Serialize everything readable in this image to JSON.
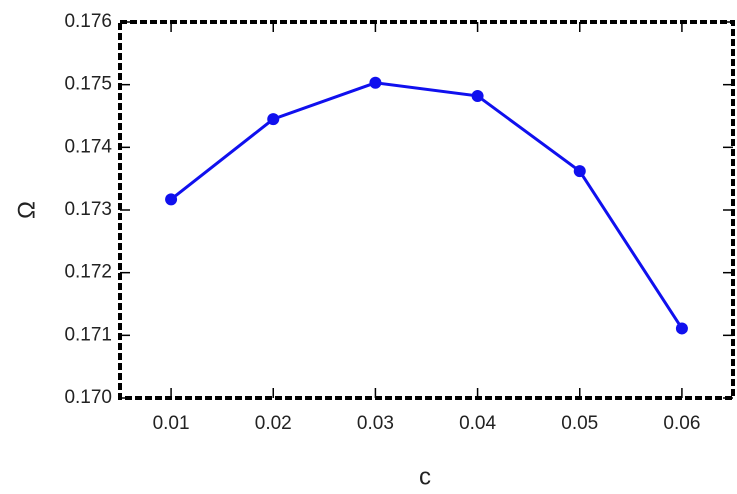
{
  "chart_data": {
    "type": "line",
    "x_label": "c",
    "y_label": "Ω",
    "x": [
      0.01,
      0.02,
      0.03,
      0.04,
      0.05,
      0.06
    ],
    "series": [
      {
        "color": "#1010ee",
        "values": [
          0.17317,
          0.17445,
          0.17503,
          0.17482,
          0.17362,
          0.17111
        ]
      }
    ],
    "xlim": [
      0.005,
      0.065
    ],
    "xticks": [
      0.01,
      0.02,
      0.03,
      0.04,
      0.05,
      0.06
    ],
    "ylim": [
      0.17,
      0.176
    ],
    "yticks": [
      {
        "value": 0.17,
        "label": "0.170"
      },
      {
        "value": 0.171,
        "label": "0.171"
      },
      {
        "value": 0.172,
        "label": "0.172"
      },
      {
        "value": 0.173,
        "label": "0.173"
      },
      {
        "value": 0.174,
        "label": "0.174"
      },
      {
        "value": 0.175,
        "label": "0.175"
      },
      {
        "value": 0.176,
        "label": "0.176"
      }
    ],
    "grid": false,
    "markers": true
  }
}
